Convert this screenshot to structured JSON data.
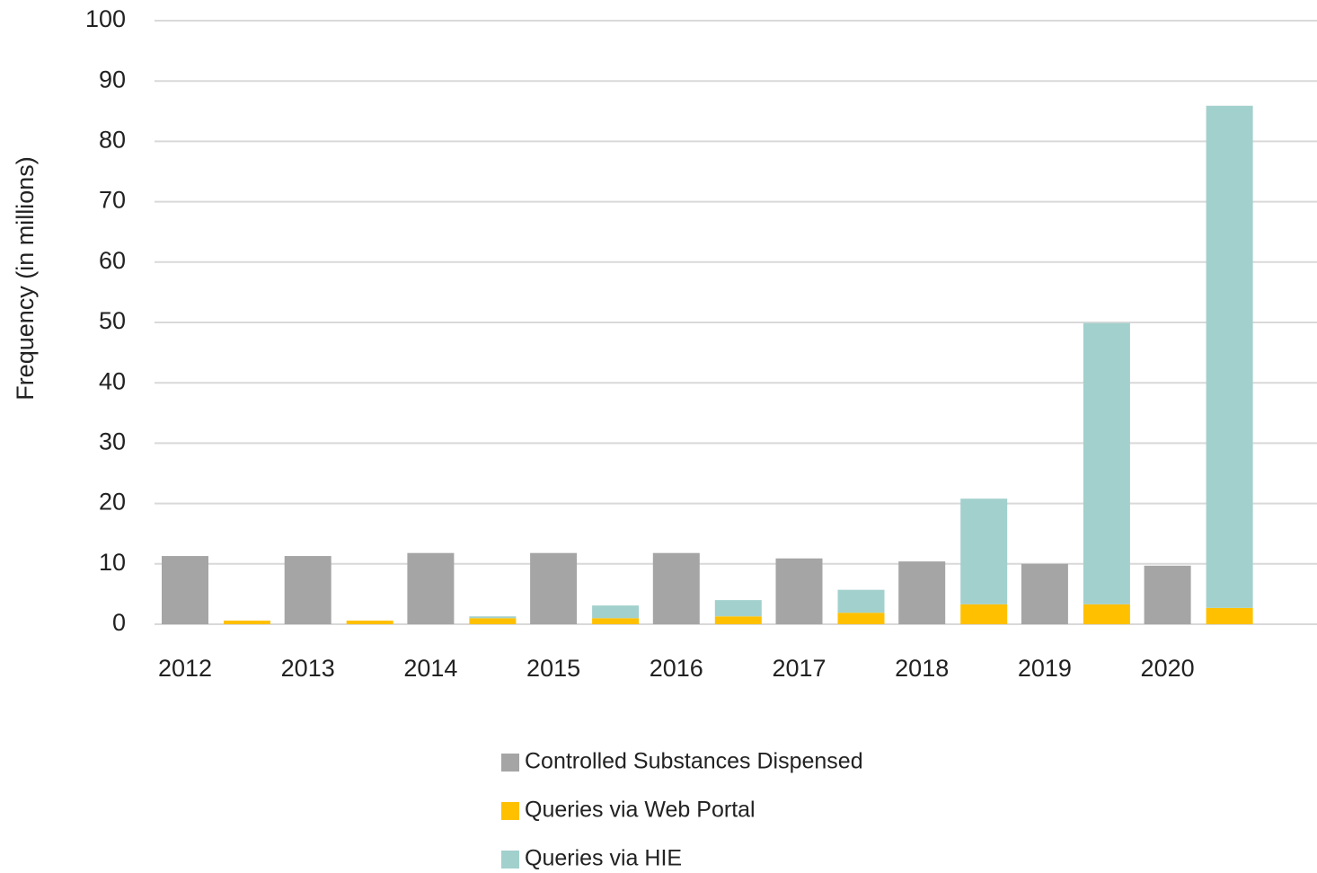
{
  "chart_data": {
    "type": "bar",
    "y_label": "Frequency (in millions)",
    "categories": [
      "2012",
      "2013",
      "2014",
      "2015",
      "2016",
      "2017",
      "2018",
      "2019",
      "2020"
    ],
    "series": [
      {
        "name": "Controlled Substances Dispensed",
        "color": "#a5a5a5",
        "group": 0,
        "values": [
          11.3,
          11.3,
          11.8,
          11.8,
          11.8,
          10.9,
          10.4,
          10.0,
          9.7
        ]
      },
      {
        "name": "Queries via Web Portal",
        "color": "#ffc000",
        "group": 1,
        "values": [
          0.6,
          0.6,
          1.0,
          1.0,
          1.3,
          1.9,
          3.3,
          3.3,
          2.7
        ]
      },
      {
        "name": "Queries via HIE",
        "color": "#a2d0cd",
        "group": 1,
        "values": [
          0,
          0,
          0.3,
          2.1,
          2.7,
          3.8,
          17.5,
          46.6,
          83.2
        ]
      }
    ],
    "stacked": true,
    "ylim": [
      0,
      100
    ],
    "yticks": [
      0,
      10,
      20,
      30,
      40,
      50,
      60,
      70,
      80,
      90,
      100
    ],
    "grid": true,
    "legend": "bottom"
  }
}
